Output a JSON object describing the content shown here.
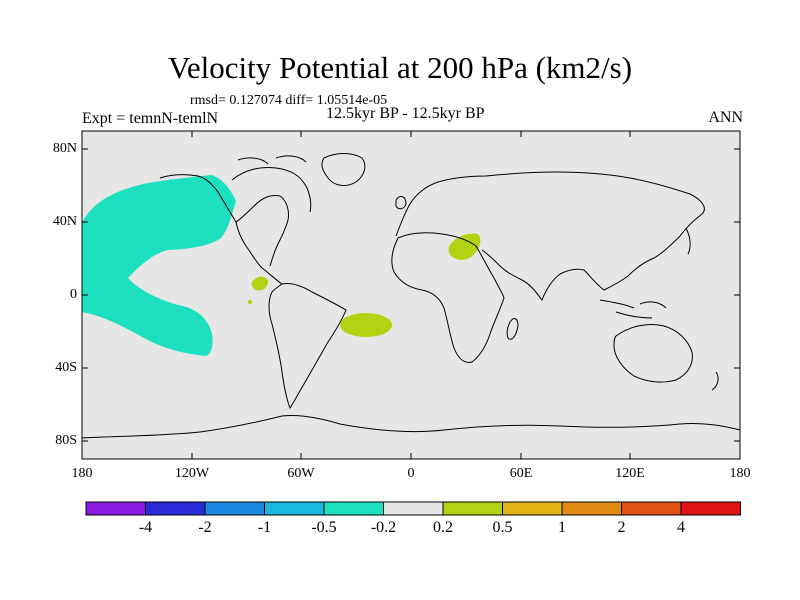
{
  "figure": {
    "title": "Velocity Potential at 200 hPa (km2/s)",
    "stats": "rmsd= 0.127074 diff= 1.05514e-05",
    "left_label": "Expt = temnN-temlN",
    "center_label": "12.5kyr BP - 12.5kyr BP",
    "right_label": "ANN"
  },
  "map": {
    "projection": "cylindrical-equidistant",
    "lon_range": [
      -180,
      180
    ],
    "lat_range": [
      -90,
      90
    ],
    "background_color": "#e6e6e6",
    "y_ticks": [
      {
        "lat": 80,
        "label": "80N"
      },
      {
        "lat": 40,
        "label": "40N"
      },
      {
        "lat": 0,
        "label": "0"
      },
      {
        "lat": -40,
        "label": "40S"
      },
      {
        "lat": -80,
        "label": "80S"
      }
    ],
    "x_ticks": [
      {
        "lon": -180,
        "label": "180"
      },
      {
        "lon": -120,
        "label": "120W"
      },
      {
        "lon": -60,
        "label": "60W"
      },
      {
        "lon": 0,
        "label": "0"
      },
      {
        "lon": 60,
        "label": "60E"
      },
      {
        "lon": 120,
        "label": "120E"
      },
      {
        "lon": 180,
        "label": "180"
      }
    ],
    "anomaly_regions": [
      {
        "name": "north-pacific-negative",
        "category": "-0.5 to -0.2",
        "color": "#1de0c0"
      },
      {
        "name": "mediterranean-positive",
        "category": "0.2 to 0.5",
        "color": "#b4d214"
      },
      {
        "name": "central-america-positive",
        "category": "0.2 to 0.5",
        "color": "#b4d214"
      },
      {
        "name": "south-atlantic-positive",
        "category": "0.2 to 0.5",
        "color": "#b4d214"
      }
    ]
  },
  "colorbar": {
    "colors": [
      "#8a1ae0",
      "#2a2ad8",
      "#1a88e0",
      "#18b8e0",
      "#1de0c0",
      "#e6e6e6",
      "#b4d214",
      "#e0b414",
      "#e08a14",
      "#e05014",
      "#e01414"
    ],
    "labels": [
      "-4",
      "-2",
      "-1",
      "-0.5",
      "-0.2",
      "0.2",
      "0.5",
      "1",
      "2",
      "4"
    ]
  }
}
